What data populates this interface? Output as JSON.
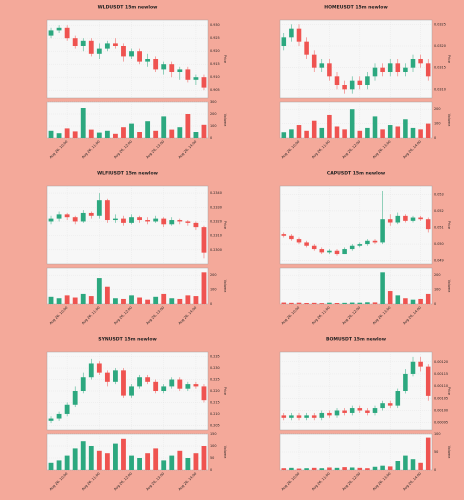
{
  "chart_data": [
    {
      "type": "candlestick",
      "title": "WLDUSDT 15m newlow",
      "ylabel": "Price",
      "vlabel": "Volume",
      "up_color": "#2ca87f",
      "down_color": "#ef5350",
      "grid": true,
      "open": [
        0.926,
        0.928,
        0.929,
        0.925,
        0.922,
        0.924,
        0.919,
        0.921,
        0.923,
        0.922,
        0.918,
        0.92,
        0.916,
        0.917,
        0.913,
        0.915,
        0.912,
        0.913,
        0.909,
        0.91
      ],
      "high": [
        0.929,
        0.93,
        0.93,
        0.926,
        0.925,
        0.925,
        0.923,
        0.924,
        0.925,
        0.923,
        0.921,
        0.921,
        0.919,
        0.918,
        0.916,
        0.916,
        0.914,
        0.914,
        0.911,
        0.911
      ],
      "low": [
        0.925,
        0.927,
        0.924,
        0.921,
        0.92,
        0.918,
        0.917,
        0.92,
        0.921,
        0.916,
        0.917,
        0.915,
        0.914,
        0.912,
        0.911,
        0.91,
        0.909,
        0.908,
        0.907,
        0.905
      ],
      "close": [
        0.928,
        0.929,
        0.925,
        0.922,
        0.924,
        0.919,
        0.921,
        0.923,
        0.922,
        0.918,
        0.92,
        0.916,
        0.917,
        0.913,
        0.915,
        0.912,
        0.913,
        0.909,
        0.91,
        0.906
      ],
      "volume": [
        60,
        40,
        80,
        55,
        250,
        70,
        45,
        60,
        35,
        90,
        120,
        50,
        140,
        60,
        180,
        70,
        90,
        200,
        50,
        110
      ],
      "ylim": [
        0.902,
        0.932
      ],
      "yticks": [
        {
          "value": 0.905,
          "label": "0.905"
        },
        {
          "value": 0.91,
          "label": "0.910"
        },
        {
          "value": 0.915,
          "label": "0.915"
        },
        {
          "value": 0.92,
          "label": "0.920"
        },
        {
          "value": 0.925,
          "label": "0.925"
        },
        {
          "value": 0.93,
          "label": "0.930"
        }
      ],
      "vlim": [
        0,
        300
      ],
      "vticks": [
        0,
        100,
        200,
        300
      ],
      "xticks": [
        {
          "value": 2,
          "label": "Aug 26, 10:00"
        },
        {
          "value": 6,
          "label": "Aug 26, 11:00"
        },
        {
          "value": 10,
          "label": "Aug 26, 12:00"
        },
        {
          "value": 14,
          "label": "Aug 26, 13:00"
        },
        {
          "value": 18,
          "label": "Aug 26, 14:00"
        }
      ]
    },
    {
      "type": "candlestick",
      "title": "HOMEUSDT 15m newlow",
      "ylabel": "Price",
      "vlabel": "Volume",
      "up_color": "#2ca87f",
      "down_color": "#ef5350",
      "grid": true,
      "open": [
        0.032,
        0.0322,
        0.0324,
        0.0321,
        0.0318,
        0.0315,
        0.0316,
        0.0313,
        0.0311,
        0.031,
        0.0312,
        0.0311,
        0.0313,
        0.0315,
        0.0314,
        0.0316,
        0.0314,
        0.0315,
        0.0317,
        0.0316
      ],
      "high": [
        0.0323,
        0.0325,
        0.0325,
        0.0322,
        0.0319,
        0.0317,
        0.0317,
        0.0314,
        0.0312,
        0.0313,
        0.0313,
        0.0314,
        0.0316,
        0.0316,
        0.0317,
        0.0317,
        0.0316,
        0.0318,
        0.0318,
        0.0317
      ],
      "low": [
        0.0319,
        0.0321,
        0.032,
        0.0317,
        0.0314,
        0.0314,
        0.0312,
        0.031,
        0.0309,
        0.0309,
        0.031,
        0.031,
        0.0312,
        0.0313,
        0.0313,
        0.0313,
        0.0313,
        0.0314,
        0.0315,
        0.0312
      ],
      "close": [
        0.0322,
        0.0324,
        0.0321,
        0.0318,
        0.0315,
        0.0316,
        0.0313,
        0.0311,
        0.031,
        0.0312,
        0.0311,
        0.0313,
        0.0315,
        0.0314,
        0.0316,
        0.0314,
        0.0315,
        0.0317,
        0.0316,
        0.0313
      ],
      "volume": [
        40,
        60,
        90,
        50,
        120,
        70,
        160,
        80,
        60,
        200,
        50,
        70,
        150,
        60,
        90,
        80,
        130,
        70,
        60,
        100
      ],
      "ylim": [
        0.0308,
        0.0326
      ],
      "yticks": [
        {
          "value": 0.031,
          "label": "0.0310"
        },
        {
          "value": 0.0315,
          "label": "0.0315"
        },
        {
          "value": 0.032,
          "label": "0.0320"
        },
        {
          "value": 0.0325,
          "label": "0.0325"
        }
      ],
      "vlim": [
        0,
        250
      ],
      "vticks": [
        0,
        100,
        200
      ],
      "xticks": [
        {
          "value": 2,
          "label": "Aug 26, 10:00"
        },
        {
          "value": 6,
          "label": "Aug 26, 11:00"
        },
        {
          "value": 10,
          "label": "Aug 26, 12:00"
        },
        {
          "value": 14,
          "label": "Aug 26, 13:00"
        },
        {
          "value": 18,
          "label": "Aug 26, 14:00"
        }
      ]
    },
    {
      "type": "candlestick",
      "title": "WLFIUSDT 15m newlow",
      "ylabel": "Price",
      "vlabel": "Volume",
      "up_color": "#2ca87f",
      "down_color": "#ef5350",
      "grid": true,
      "open": [
        0.232,
        0.2322,
        0.2325,
        0.2323,
        0.232,
        0.2326,
        0.2324,
        0.2335,
        0.2321,
        0.2322,
        0.2319,
        0.2323,
        0.2321,
        0.232,
        0.2322,
        0.2318,
        0.2321,
        0.232,
        0.2319,
        0.2316
      ],
      "high": [
        0.2324,
        0.2327,
        0.2326,
        0.2324,
        0.2328,
        0.2327,
        0.234,
        0.2336,
        0.2325,
        0.2324,
        0.2325,
        0.2324,
        0.2323,
        0.2324,
        0.2323,
        0.2323,
        0.2322,
        0.2321,
        0.232,
        0.2317
      ],
      "low": [
        0.2318,
        0.232,
        0.2321,
        0.2318,
        0.2319,
        0.2322,
        0.2322,
        0.2319,
        0.2319,
        0.2317,
        0.2318,
        0.2319,
        0.2318,
        0.2319,
        0.2316,
        0.2317,
        0.2318,
        0.2317,
        0.2314,
        0.2294
      ],
      "close": [
        0.2322,
        0.2325,
        0.2323,
        0.232,
        0.2326,
        0.2324,
        0.2335,
        0.2321,
        0.2322,
        0.2319,
        0.2323,
        0.2321,
        0.232,
        0.2322,
        0.2318,
        0.2321,
        0.232,
        0.2319,
        0.2316,
        0.2298
      ],
      "volume": [
        50,
        40,
        60,
        45,
        70,
        55,
        180,
        120,
        40,
        35,
        60,
        45,
        30,
        50,
        70,
        40,
        35,
        60,
        55,
        220
      ],
      "ylim": [
        0.229,
        0.2345
      ],
      "yticks": [
        {
          "value": 0.23,
          "label": "0.2300"
        },
        {
          "value": 0.231,
          "label": "0.2310"
        },
        {
          "value": 0.232,
          "label": "0.2320"
        },
        {
          "value": 0.233,
          "label": "0.2330"
        },
        {
          "value": 0.234,
          "label": "0.2340"
        }
      ],
      "vlim": [
        0,
        250
      ],
      "vticks": [
        0,
        100,
        200
      ],
      "xticks": [
        {
          "value": 2,
          "label": "Aug 26, 10:00"
        },
        {
          "value": 6,
          "label": "Aug 26, 11:00"
        },
        {
          "value": 10,
          "label": "Aug 26, 12:00"
        },
        {
          "value": 14,
          "label": "Aug 26, 13:00"
        },
        {
          "value": 18,
          "label": "Aug 26, 14:00"
        }
      ]
    },
    {
      "type": "candlestick",
      "title": "CAPUSDT 15m newlow",
      "ylabel": "Price",
      "vlabel": "Volume",
      "up_color": "#2ca87f",
      "down_color": "#ef5350",
      "grid": true,
      "open": [
        0.0506,
        0.0505,
        0.0503,
        0.0501,
        0.0499,
        0.0497,
        0.0495,
        0.0496,
        0.0494,
        0.0497,
        0.0499,
        0.05,
        0.0502,
        0.0501,
        0.0515,
        0.0513,
        0.0517,
        0.0514,
        0.0516,
        0.0515
      ],
      "high": [
        0.0507,
        0.0506,
        0.0504,
        0.0502,
        0.05,
        0.0498,
        0.0497,
        0.0497,
        0.0498,
        0.05,
        0.0501,
        0.0503,
        0.0503,
        0.0532,
        0.0518,
        0.0519,
        0.0518,
        0.0517,
        0.0517,
        0.0516
      ],
      "low": [
        0.0504,
        0.0502,
        0.05,
        0.0498,
        0.0496,
        0.0494,
        0.0494,
        0.0493,
        0.0494,
        0.0496,
        0.0498,
        0.0499,
        0.05,
        0.05,
        0.0511,
        0.0512,
        0.0513,
        0.0513,
        0.0514,
        0.0507
      ],
      "close": [
        0.0505,
        0.0503,
        0.0501,
        0.0499,
        0.0497,
        0.0495,
        0.0496,
        0.0494,
        0.0497,
        0.0499,
        0.05,
        0.0502,
        0.0501,
        0.0515,
        0.0513,
        0.0517,
        0.0514,
        0.0516,
        0.0515,
        0.0509
      ],
      "volume": [
        10,
        8,
        9,
        7,
        8,
        6,
        9,
        7,
        8,
        10,
        9,
        12,
        11,
        220,
        90,
        60,
        40,
        30,
        35,
        70
      ],
      "ylim": [
        0.0488,
        0.0535
      ],
      "yticks": [
        {
          "value": 0.049,
          "label": "0.049"
        },
        {
          "value": 0.05,
          "label": "0.050"
        },
        {
          "value": 0.051,
          "label": "0.051"
        },
        {
          "value": 0.052,
          "label": "0.052"
        },
        {
          "value": 0.053,
          "label": "0.053"
        }
      ],
      "vlim": [
        0,
        250
      ],
      "vticks": [
        0,
        100,
        200
      ],
      "xticks": [
        {
          "value": 2,
          "label": "Aug 26, 10:00"
        },
        {
          "value": 6,
          "label": "Aug 26, 11:00"
        },
        {
          "value": 10,
          "label": "Aug 26, 12:00"
        },
        {
          "value": 14,
          "label": "Aug 26, 13:00"
        },
        {
          "value": 18,
          "label": "Aug 26, 14:00"
        }
      ]
    },
    {
      "type": "candlestick",
      "title": "SYNUSDT 15m newlow",
      "ylabel": "Price",
      "vlabel": "Volume",
      "up_color": "#2ca87f",
      "down_color": "#ef5350",
      "grid": true,
      "open": [
        0.207,
        0.208,
        0.21,
        0.214,
        0.22,
        0.226,
        0.232,
        0.228,
        0.224,
        0.229,
        0.218,
        0.222,
        0.226,
        0.224,
        0.22,
        0.222,
        0.225,
        0.221,
        0.223,
        0.222
      ],
      "high": [
        0.209,
        0.211,
        0.215,
        0.222,
        0.228,
        0.234,
        0.233,
        0.229,
        0.23,
        0.23,
        0.223,
        0.227,
        0.227,
        0.225,
        0.223,
        0.226,
        0.226,
        0.224,
        0.224,
        0.223
      ],
      "low": [
        0.206,
        0.207,
        0.209,
        0.213,
        0.219,
        0.225,
        0.227,
        0.222,
        0.223,
        0.217,
        0.217,
        0.221,
        0.223,
        0.219,
        0.219,
        0.221,
        0.22,
        0.22,
        0.221,
        0.215
      ],
      "close": [
        0.208,
        0.21,
        0.214,
        0.22,
        0.226,
        0.232,
        0.228,
        0.224,
        0.229,
        0.218,
        0.222,
        0.226,
        0.224,
        0.22,
        0.222,
        0.225,
        0.221,
        0.223,
        0.222,
        0.216
      ],
      "volume": [
        30,
        40,
        60,
        90,
        120,
        100,
        80,
        70,
        110,
        130,
        60,
        50,
        70,
        90,
        40,
        60,
        80,
        50,
        70,
        100
      ],
      "ylim": [
        0.203,
        0.237
      ],
      "yticks": [
        {
          "value": 0.205,
          "label": "0.205"
        },
        {
          "value": 0.21,
          "label": "0.210"
        },
        {
          "value": 0.215,
          "label": "0.215"
        },
        {
          "value": 0.22,
          "label": "0.220"
        },
        {
          "value": 0.225,
          "label": "0.225"
        },
        {
          "value": 0.23,
          "label": "0.230"
        },
        {
          "value": 0.235,
          "label": "0.235"
        }
      ],
      "vlim": [
        0,
        150
      ],
      "vticks": [
        0,
        50,
        100,
        150
      ],
      "xticks": [
        {
          "value": 2,
          "label": "Aug 26, 10:00"
        },
        {
          "value": 6,
          "label": "Aug 26, 11:00"
        },
        {
          "value": 10,
          "label": "Aug 26, 12:00"
        },
        {
          "value": 14,
          "label": "Aug 26, 13:00"
        },
        {
          "value": 18,
          "label": "Aug 26, 14:00"
        }
      ]
    },
    {
      "type": "candlestick",
      "title": "BOMUSDT 15m newlow",
      "ylabel": "Price",
      "vlabel": "Volume",
      "up_color": "#2ca87f",
      "down_color": "#ef5350",
      "grid": true,
      "open": [
        0.00098,
        0.00097,
        0.00098,
        0.00097,
        0.00098,
        0.00097,
        0.00099,
        0.00098,
        0.001,
        0.00099,
        0.00101,
        0.001,
        0.00099,
        0.00101,
        0.00103,
        0.00102,
        0.00108,
        0.00115,
        0.0012,
        0.00118
      ],
      "high": [
        0.00099,
        0.00099,
        0.00099,
        0.00099,
        0.00099,
        0.001,
        0.001,
        0.00101,
        0.00101,
        0.00102,
        0.00102,
        0.00101,
        0.00102,
        0.00104,
        0.00104,
        0.00109,
        0.00117,
        0.00122,
        0.00122,
        0.00119
      ],
      "low": [
        0.00096,
        0.00096,
        0.00096,
        0.00096,
        0.00096,
        0.00096,
        0.00097,
        0.00097,
        0.00098,
        0.00098,
        0.00099,
        0.00098,
        0.00098,
        0.001,
        0.00101,
        0.00101,
        0.00107,
        0.00114,
        0.00116,
        0.00104
      ],
      "close": [
        0.00097,
        0.00098,
        0.00097,
        0.00098,
        0.00097,
        0.00099,
        0.00098,
        0.001,
        0.00099,
        0.00101,
        0.001,
        0.00099,
        0.00101,
        0.00103,
        0.00102,
        0.00108,
        0.00115,
        0.0012,
        0.00118,
        0.00106
      ],
      "volume": [
        5,
        6,
        4,
        5,
        6,
        5,
        7,
        6,
        8,
        7,
        6,
        5,
        9,
        12,
        10,
        25,
        40,
        30,
        20,
        90
      ],
      "ylim": [
        0.00092,
        0.00124
      ],
      "yticks": [
        {
          "value": 0.00095,
          "label": "0.00095"
        },
        {
          "value": 0.001,
          "label": "0.00100"
        },
        {
          "value": 0.00105,
          "label": "0.00105"
        },
        {
          "value": 0.0011,
          "label": "0.00110"
        },
        {
          "value": 0.00115,
          "label": "0.00115"
        },
        {
          "value": 0.0012,
          "label": "0.00120"
        }
      ],
      "vlim": [
        0,
        100
      ],
      "vticks": [
        0,
        50,
        100
      ],
      "xticks": [
        {
          "value": 2,
          "label": "Aug 26, 10:00"
        },
        {
          "value": 6,
          "label": "Aug 26, 11:00"
        },
        {
          "value": 10,
          "label": "Aug 26, 12:00"
        },
        {
          "value": 14,
          "label": "Aug 26, 13:00"
        },
        {
          "value": 18,
          "label": "Aug 26, 14:00"
        }
      ]
    }
  ]
}
